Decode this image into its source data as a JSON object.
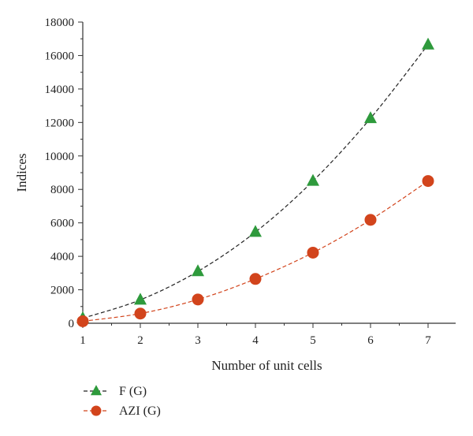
{
  "chart_data": {
    "type": "line",
    "xlabel": "Number of unit cells",
    "ylabel": "Indices",
    "x": [
      1,
      2,
      3,
      4,
      5,
      6,
      7
    ],
    "xlim": [
      1,
      7.5
    ],
    "ylim": [
      0,
      18000
    ],
    "x_ticks": [
      1,
      2,
      3,
      4,
      5,
      6,
      7
    ],
    "y_ticks": [
      0,
      2000,
      4000,
      6000,
      8000,
      10000,
      12000,
      14000,
      16000,
      18000
    ],
    "grid": false,
    "legend_position": "bottom-left",
    "series": [
      {
        "name": "F (G)",
        "marker": "triangle",
        "line_style": "dashed",
        "line_color": "#222222",
        "marker_color": "#2e9a3c",
        "values": [
          300,
          1400,
          3100,
          5450,
          8500,
          12250,
          16650
        ]
      },
      {
        "name": "AZI (G)",
        "marker": "circle",
        "line_style": "dashed",
        "line_color": "#d2441c",
        "marker_color": "#d2441c",
        "values": [
          120,
          580,
          1420,
          2650,
          4220,
          6180,
          8500
        ]
      }
    ]
  }
}
